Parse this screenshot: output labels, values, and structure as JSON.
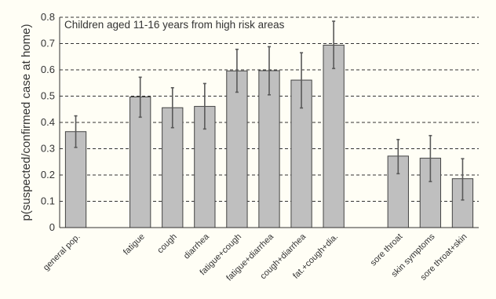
{
  "chart_data": {
    "type": "bar",
    "title": "",
    "annotation": "Children aged 11-16 years from high risk areas",
    "ylabel": "p(suspected/confirmed case at home)",
    "xlabel": "",
    "ylim": [
      0,
      0.8
    ],
    "yticks": [
      0,
      0.1,
      0.2,
      0.3,
      0.4,
      0.5,
      0.6,
      0.7,
      0.8
    ],
    "ytick_labels": [
      "0",
      "0.1",
      "0.2",
      "0.3",
      "0.4",
      "0.5",
      "0.6",
      "0.7",
      "0.8"
    ],
    "grid": "horizontal-dashed",
    "legend": "none",
    "categories": [
      "general pop.",
      "",
      "fatigue",
      "cough",
      "diarrhea",
      "fatigue+cough",
      "fatigue+diarrhea",
      "cough+diarrhea",
      "fat.+cough+dia.",
      "",
      "sore throat",
      "skin symptoms",
      "sore throat+skin"
    ],
    "values": [
      0.365,
      null,
      0.497,
      0.456,
      0.461,
      0.596,
      0.597,
      0.561,
      0.694,
      null,
      0.272,
      0.264,
      0.186
    ],
    "error_low": [
      0.305,
      null,
      0.42,
      0.38,
      0.375,
      0.515,
      0.505,
      0.455,
      0.605,
      null,
      0.205,
      0.175,
      0.105
    ],
    "error_high": [
      0.425,
      null,
      0.572,
      0.532,
      0.548,
      0.678,
      0.688,
      0.665,
      0.785,
      null,
      0.335,
      0.35,
      0.262
    ],
    "colors": {
      "bar_fill": "#bfbfbf",
      "bar_stroke": "#444444",
      "error_bar": "#595959",
      "grid": "#333333",
      "background": "#fffef5"
    }
  }
}
